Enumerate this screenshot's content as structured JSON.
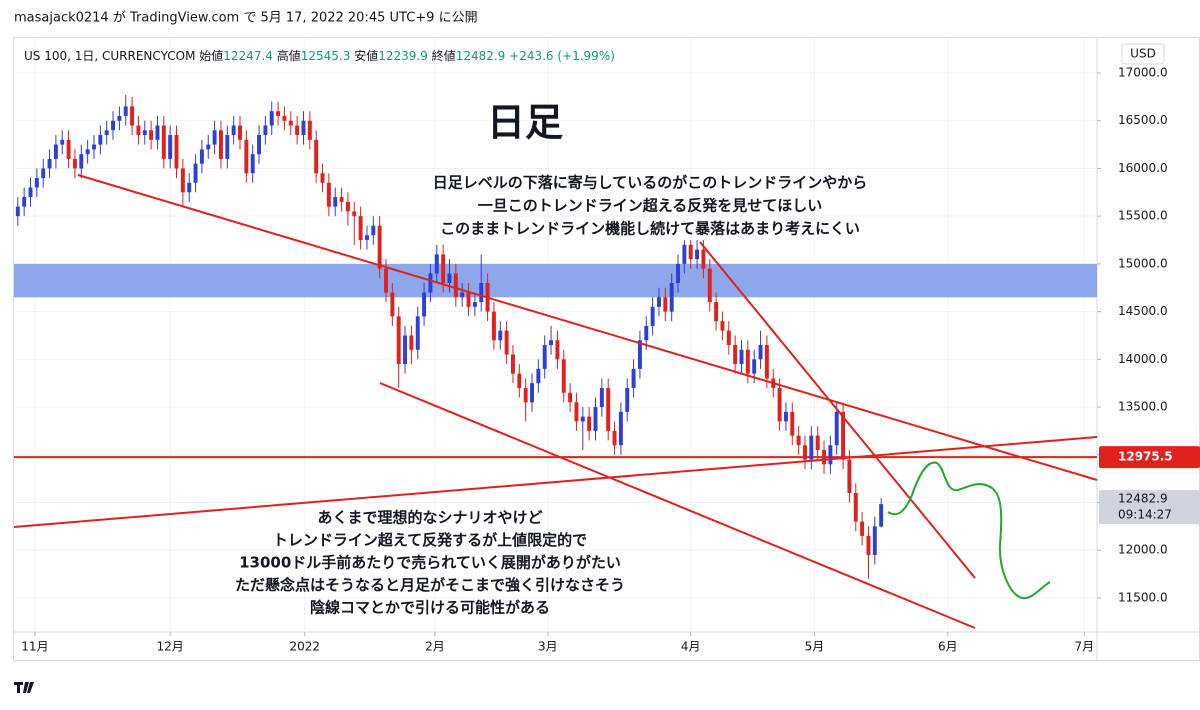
{
  "published": "masajack0214 が TradingView.com で 5月 17, 2022 20:45 UTC+9 に公開",
  "chart_data": {
    "type": "candlestick",
    "symbol": "US 100, 1日, CURRENCYCOM",
    "ohlc_labels": [
      "始値",
      "高値",
      "安値",
      "終値"
    ],
    "change": "+243.6 (+1.99%)",
    "title": "日足",
    "annotation_top": [
      "日足レベルの下落に寄与しているのがこのトレンドラインやから",
      "一旦このトレンドライン超える反発を見せてほしい",
      "このままトレンドライン機能し続けて暴落はあまり考えにくい"
    ],
    "annotation_bottom": [
      "あくまで理想的なシナリオやけど",
      "トレンドライン超えて反発するが上値限定的で",
      "13000ドル手前あたりで売られていく展開がありがたい",
      "ただ懸念点はそうなると月足がそこまで強く引けなさそう",
      "陰線コマとかで引ける可能性がある"
    ],
    "currency": "USD",
    "countdown": "09:14:27",
    "brand": "TradingView",
    "up_color": "#2e3fd6",
    "down_color": "#e0211d",
    "zone_color": "#8ea6ea",
    "line_color": "#e0211d",
    "zone": [
      14650,
      15000
    ],
    "hline": {
      "value": 12975.5,
      "label": "12975.5"
    },
    "grid": true,
    "xlim": [
      -0.6,
      170
    ],
    "xticks": [
      {
        "value": 2.7,
        "label": "11月"
      },
      {
        "value": 24,
        "label": "12月"
      },
      {
        "value": 45.2,
        "label": "2022"
      },
      {
        "value": 65.7,
        "label": "2月"
      },
      {
        "value": 83.5,
        "label": "3月"
      },
      {
        "value": 106,
        "label": "4月"
      },
      {
        "value": 125.5,
        "label": "5月"
      },
      {
        "value": 146.5,
        "label": "6月"
      },
      {
        "value": 168,
        "label": "7月"
      }
    ],
    "ylim": [
      11143,
      17367
    ],
    "yticks": [
      {
        "value": 11500,
        "label": "11500.0"
      },
      {
        "value": 12000,
        "label": "12000.0"
      },
      {
        "value": 12500,
        "label": "12500.0"
      },
      {
        "value": 13000,
        "label": "13000.0"
      },
      {
        "value": 13500,
        "label": "13500.0"
      },
      {
        "value": 14000,
        "label": "14000.0"
      },
      {
        "value": 14500,
        "label": "14500.0"
      },
      {
        "value": 15000,
        "label": "15000.0"
      },
      {
        "value": 15500,
        "label": "15500.0"
      },
      {
        "value": 16000,
        "label": "16000.0"
      },
      {
        "value": 16500,
        "label": "16500.0"
      },
      {
        "value": 17000,
        "label": "17000.0"
      }
    ],
    "open": [
      15500,
      15600,
      15700,
      15800,
      15900,
      16000,
      16100,
      16250,
      16300,
      16100,
      16000,
      16150,
      16200,
      16250,
      16350,
      16400,
      16500,
      16550,
      16650,
      16450,
      16350,
      16400,
      16300,
      16450,
      16100,
      16350,
      16000,
      15750,
      15850,
      16050,
      16200,
      16250,
      16400,
      16100,
      16350,
      16450,
      16300,
      15950,
      16150,
      16350,
      16450,
      16600,
      16550,
      16500,
      16450,
      16350,
      16500,
      16300,
      15950,
      15850,
      15600,
      15700,
      15650,
      15550,
      15500,
      15250,
      15300,
      15400,
      14950,
      14700,
      14450,
      13950,
      14250,
      14100,
      14450,
      14700,
      14900,
      15100,
      14800,
      14900,
      14650,
      14700,
      14550,
      14600,
      14800,
      14500,
      14200,
      14300,
      14050,
      13850,
      13700,
      13550,
      13750,
      13900,
      14150,
      14200,
      14000,
      13650,
      13550,
      13350,
      13400,
      13250,
      13500,
      13700,
      13250,
      13100,
      13450,
      13700,
      13900,
      14200,
      14350,
      14550,
      14650,
      14500,
      14800,
      15000,
      15200,
      15050,
      15150,
      14950,
      14600,
      14400,
      14300,
      14150,
      13950,
      14100,
      13850,
      14000,
      14150,
      13800,
      13700,
      13350,
      13450,
      13200,
      13100,
      12950,
      13200,
      13050,
      12900,
      13100,
      13450,
      12950,
      12600,
      12300,
      12150,
      11950,
      12247.4
    ],
    "high": [
      15700,
      15800,
      15900,
      16000,
      16100,
      16200,
      16350,
      16400,
      16400,
      16200,
      16250,
      16300,
      16350,
      16450,
      16500,
      16600,
      16650,
      16770,
      16750,
      16550,
      16500,
      16500,
      16550,
      16550,
      16450,
      16450,
      16100,
      15950,
      16150,
      16300,
      16350,
      16500,
      16500,
      16450,
      16550,
      16550,
      16400,
      16250,
      16450,
      16550,
      16700,
      16700,
      16650,
      16600,
      16550,
      16600,
      16600,
      16400,
      16050,
      15950,
      15800,
      15800,
      15750,
      15650,
      15600,
      15400,
      15500,
      15500,
      15050,
      14800,
      14550,
      14350,
      14350,
      14550,
      14800,
      15000,
      15200,
      15200,
      15050,
      15000,
      14800,
      14800,
      14700,
      15100,
      14900,
      14600,
      14400,
      14400,
      14150,
      13950,
      13800,
      13850,
      14000,
      14250,
      14350,
      14300,
      14100,
      13750,
      13650,
      13500,
      13500,
      13600,
      13800,
      13800,
      13350,
      13550,
      13800,
      14000,
      14300,
      14450,
      14650,
      14750,
      14750,
      14900,
      15100,
      15250,
      15250,
      15250,
      15250,
      15050,
      14700,
      14500,
      14400,
      14250,
      14200,
      14200,
      14100,
      14300,
      14250,
      13900,
      13800,
      13550,
      13550,
      13300,
      13200,
      13300,
      13300,
      13150,
      13200,
      13550,
      13550,
      13050,
      12700,
      12400,
      12250,
      12350,
      12545.3
    ],
    "low": [
      15400,
      15500,
      15600,
      15700,
      15800,
      15900,
      16000,
      16150,
      16000,
      15900,
      15900,
      16050,
      16100,
      16150,
      16250,
      16300,
      16400,
      16450,
      16350,
      16250,
      16250,
      16200,
      16200,
      16000,
      16000,
      15900,
      15600,
      15650,
      15750,
      15950,
      16100,
      16150,
      16000,
      16000,
      16250,
      16200,
      15850,
      15850,
      16050,
      16250,
      16350,
      16450,
      16400,
      16350,
      16250,
      16250,
      16200,
      15850,
      15750,
      15500,
      15500,
      15550,
      15400,
      15200,
      15150,
      15150,
      15200,
      14850,
      14600,
      14350,
      13700,
      13850,
      13950,
      14000,
      14350,
      14600,
      14800,
      14700,
      14700,
      14550,
      14550,
      14450,
      14450,
      14500,
      14400,
      14100,
      14100,
      13950,
      13750,
      13600,
      13350,
      13450,
      13650,
      13800,
      14050,
      13900,
      13550,
      13450,
      13250,
      13050,
      13150,
      13150,
      13400,
      13150,
      13000,
      13000,
      13350,
      13600,
      13800,
      14100,
      14250,
      14450,
      14400,
      14400,
      14700,
      14900,
      14950,
      14950,
      14850,
      14500,
      14300,
      14200,
      14050,
      13850,
      13850,
      13750,
      13750,
      13900,
      13700,
      13600,
      13250,
      13250,
      13100,
      13000,
      12850,
      12850,
      12950,
      12800,
      12800,
      13000,
      12850,
      12500,
      12200,
      12050,
      11700,
      11850,
      12239.9
    ],
    "close": [
      15600,
      15700,
      15800,
      15900,
      16000,
      16100,
      16250,
      16300,
      16100,
      16000,
      16150,
      16200,
      16250,
      16350,
      16400,
      16500,
      16550,
      16650,
      16450,
      16350,
      16400,
      16300,
      16450,
      16100,
      16350,
      16000,
      15750,
      15850,
      16050,
      16200,
      16250,
      16400,
      16100,
      16350,
      16450,
      16300,
      15950,
      16150,
      16350,
      16450,
      16600,
      16550,
      16500,
      16450,
      16350,
      16500,
      16300,
      15950,
      15850,
      15600,
      15700,
      15650,
      15550,
      15500,
      15250,
      15300,
      15400,
      14950,
      14700,
      14450,
      13950,
      14250,
      14100,
      14450,
      14700,
      14900,
      15100,
      14800,
      14900,
      14650,
      14700,
      14550,
      14600,
      14800,
      14500,
      14200,
      14300,
      14050,
      13850,
      13700,
      13550,
      13750,
      13900,
      14150,
      14200,
      14000,
      13650,
      13550,
      13350,
      13400,
      13250,
      13500,
      13700,
      13250,
      13100,
      13450,
      13700,
      13900,
      14200,
      14350,
      14550,
      14650,
      14500,
      14800,
      15000,
      15200,
      15050,
      15150,
      14950,
      14600,
      14400,
      14300,
      14150,
      13950,
      14100,
      13850,
      14000,
      14150,
      13800,
      13700,
      13350,
      13450,
      13200,
      13100,
      12950,
      13200,
      13050,
      12900,
      13100,
      13450,
      12950,
      12600,
      12300,
      12150,
      11950,
      12250,
      12482.9
    ]
  }
}
